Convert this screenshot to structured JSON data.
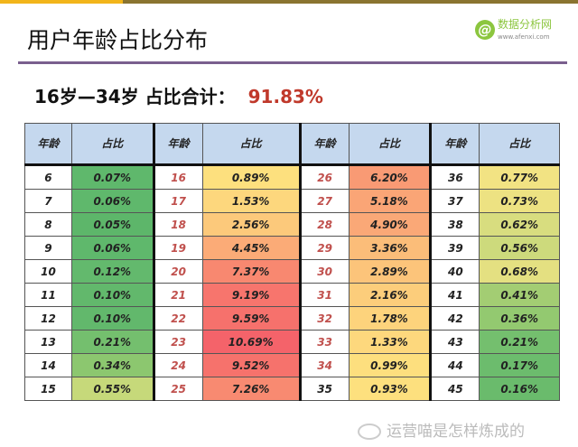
{
  "title": "用户年龄占比分布",
  "logo": {
    "name": "数据分析网",
    "url": "www.afenxi.com"
  },
  "summary": {
    "label": "16岁—34岁 占比合计：",
    "value": "91.83%"
  },
  "headers": {
    "age": "年龄",
    "ratio": "占比"
  },
  "highlight_color": "#c0504d",
  "groups": [
    [
      [
        "6",
        "0.07%",
        "#5fb86c"
      ],
      [
        "7",
        "0.06%",
        "#5fb86c"
      ],
      [
        "8",
        "0.05%",
        "#5db66a"
      ],
      [
        "9",
        "0.06%",
        "#5fb86c"
      ],
      [
        "10",
        "0.12%",
        "#63b96d"
      ],
      [
        "11",
        "0.10%",
        "#62b86c"
      ],
      [
        "12",
        "0.10%",
        "#62b86c"
      ],
      [
        "13",
        "0.21%",
        "#74bf6e"
      ],
      [
        "14",
        "0.34%",
        "#8cc76f"
      ],
      [
        "15",
        "0.55%",
        "#c6d97a"
      ]
    ],
    [
      [
        "16",
        "0.89%",
        "#fde07e"
      ],
      [
        "17",
        "1.53%",
        "#fdd77d"
      ],
      [
        "18",
        "2.56%",
        "#fcc97b"
      ],
      [
        "19",
        "4.45%",
        "#fbab77"
      ],
      [
        "20",
        "7.37%",
        "#f88870"
      ],
      [
        "21",
        "9.19%",
        "#f7756d"
      ],
      [
        "22",
        "9.59%",
        "#f6716c"
      ],
      [
        "23",
        "10.69%",
        "#f4636a"
      ],
      [
        "24",
        "9.52%",
        "#f6726c"
      ],
      [
        "25",
        "7.26%",
        "#f88a71"
      ]
    ],
    [
      [
        "26",
        "6.20%",
        "#f99a74"
      ],
      [
        "27",
        "5.18%",
        "#faa576"
      ],
      [
        "28",
        "4.90%",
        "#faa877"
      ],
      [
        "29",
        "3.36%",
        "#fbbd79"
      ],
      [
        "30",
        "2.89%",
        "#fcc47a"
      ],
      [
        "31",
        "2.16%",
        "#fccd7b"
      ],
      [
        "32",
        "1.78%",
        "#fdd37c"
      ],
      [
        "33",
        "1.33%",
        "#fdd87d"
      ],
      [
        "34",
        "0.99%",
        "#fddf7e"
      ],
      [
        "35",
        "0.93%",
        "#fde07e"
      ]
    ],
    [
      [
        "36",
        "0.77%",
        "#f2e383"
      ],
      [
        "37",
        "0.73%",
        "#ede282"
      ],
      [
        "38",
        "0.62%",
        "#d8dd7f"
      ],
      [
        "39",
        "0.56%",
        "#cdda7c"
      ],
      [
        "40",
        "0.68%",
        "#e4e081"
      ],
      [
        "41",
        "0.41%",
        "#a3cd73"
      ],
      [
        "42",
        "0.36%",
        "#93c970"
      ],
      [
        "43",
        "0.21%",
        "#74bf6e"
      ],
      [
        "44",
        "0.17%",
        "#6cbc6d"
      ],
      [
        "45",
        "0.16%",
        "#6abb6c"
      ]
    ]
  ],
  "watermark": "运营喵是怎样炼成的"
}
